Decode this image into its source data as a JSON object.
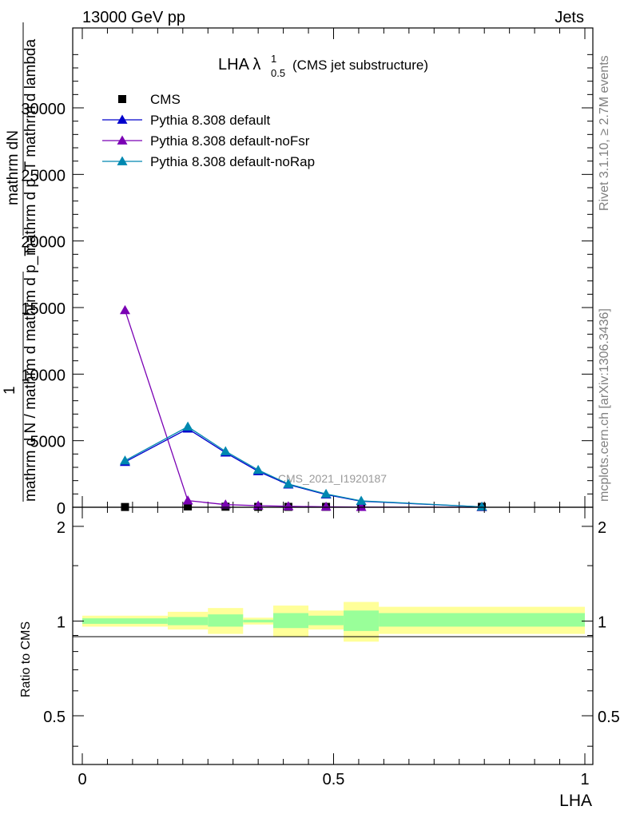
{
  "header": {
    "energy_label": "13000 GeV pp",
    "process_label": "Jets"
  },
  "side_labels": {
    "rivet": "Rivet 3.1.10, ≥ 2.7M events",
    "mcplots": "mcplots.cern.ch [arXiv:1306.3436]"
  },
  "chart_data": [
    {
      "type": "line",
      "title_main": "LHA λ",
      "title_sup": "1",
      "title_sub": "0.5",
      "title_note": "(CMS jet substructure)",
      "watermark": "CMS_2021_I1920187",
      "ylabel_lines": [
        "mathrm dN",
        "mathrm d p_T mathrm d lambda",
        "1",
        "mathrm d N / mathrm d mathrm d p_T"
      ],
      "xlim": [
        0,
        1
      ],
      "ylim": [
        0,
        36000
      ],
      "y_ticks": [
        0,
        5000,
        10000,
        15000,
        20000,
        25000,
        30000
      ],
      "legend_position": "top-left",
      "series": [
        {
          "name": "CMS",
          "color": "#000000",
          "marker": "square",
          "x": [
            0.085,
            0.21,
            0.285,
            0.35,
            0.41,
            0.485,
            0.555,
            0.795
          ],
          "values": [
            20,
            60,
            40,
            30,
            30,
            30,
            30,
            30
          ]
        },
        {
          "name": "Pythia 8.308 default",
          "color": "#0000cc",
          "marker": "triangle",
          "x": [
            0.085,
            0.21,
            0.285,
            0.35,
            0.41,
            0.485,
            0.555,
            0.795
          ],
          "values": [
            3400,
            5900,
            4100,
            2700,
            1700,
            950,
            450,
            30
          ]
        },
        {
          "name": "Pythia 8.308 default-noFsr",
          "color": "#7a00b4",
          "marker": "triangle",
          "x": [
            0.085,
            0.21,
            0.285,
            0.35,
            0.41,
            0.485,
            0.555,
            0.795
          ],
          "values": [
            14800,
            500,
            200,
            120,
            70,
            35,
            15,
            0
          ]
        },
        {
          "name": "Pythia 8.308 default-noRap",
          "color": "#0088b0",
          "marker": "triangle",
          "x": [
            0.085,
            0.21,
            0.285,
            0.35,
            0.41,
            0.485,
            0.555,
            0.795
          ],
          "values": [
            3500,
            6050,
            4200,
            2800,
            1750,
            1000,
            480,
            30
          ]
        }
      ]
    },
    {
      "type": "area",
      "ylabel": "Ratio to CMS",
      "xlabel": "LHA",
      "xlim": [
        0,
        1
      ],
      "ylim": [
        0.35,
        2.3
      ],
      "y_scale": "log",
      "y_ticks": [
        0.5,
        1,
        2
      ],
      "y_tick_labels": [
        "0.5",
        "1",
        "2"
      ],
      "x_ticks": [
        0,
        0.5,
        1
      ],
      "x_tick_labels": [
        "0",
        "0.5",
        "1"
      ],
      "bins": [
        {
          "x_lo": 0.0,
          "x_hi": 0.17,
          "stat_lo": 0.98,
          "stat_hi": 1.02,
          "total_lo": 0.96,
          "total_hi": 1.04
        },
        {
          "x_lo": 0.17,
          "x_hi": 0.25,
          "stat_lo": 0.97,
          "stat_hi": 1.03,
          "total_lo": 0.94,
          "total_hi": 1.07
        },
        {
          "x_lo": 0.25,
          "x_hi": 0.32,
          "stat_lo": 0.96,
          "stat_hi": 1.05,
          "total_lo": 0.91,
          "total_hi": 1.1
        },
        {
          "x_lo": 0.32,
          "x_hi": 0.38,
          "stat_lo": 0.99,
          "stat_hi": 1.01,
          "total_lo": 0.975,
          "total_hi": 1.025
        },
        {
          "x_lo": 0.38,
          "x_hi": 0.45,
          "stat_lo": 0.95,
          "stat_hi": 1.06,
          "total_lo": 0.89,
          "total_hi": 1.12
        },
        {
          "x_lo": 0.45,
          "x_hi": 0.52,
          "stat_lo": 0.97,
          "stat_hi": 1.04,
          "total_lo": 0.94,
          "total_hi": 1.08
        },
        {
          "x_lo": 0.52,
          "x_hi": 0.59,
          "stat_lo": 0.93,
          "stat_hi": 1.08,
          "total_lo": 0.86,
          "total_hi": 1.15
        },
        {
          "x_lo": 0.59,
          "x_hi": 1.0,
          "stat_lo": 0.96,
          "stat_hi": 1.06,
          "total_lo": 0.91,
          "total_hi": 1.11
        }
      ],
      "band_colors": {
        "stat": "#99ff99",
        "total": "#ffff99"
      }
    }
  ]
}
